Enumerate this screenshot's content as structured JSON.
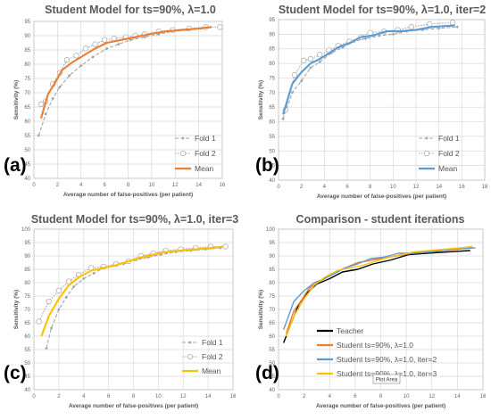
{
  "figure": {
    "tooltip": "Plot Area"
  },
  "chart_data": [
    {
      "type": "line",
      "panel_label": "(a)",
      "title": "Student Model for ts=90%, λ=1.0",
      "xlabel": "Average number of false-positives (per patient)",
      "ylabel": "Sensitivity (%)",
      "xlim": [
        0,
        16
      ],
      "ylim": [
        40,
        95
      ],
      "xticks": [
        "0",
        "2",
        "4",
        "6",
        "8",
        "10",
        "12",
        "14",
        "16"
      ],
      "yticks": [
        "40",
        "45",
        "50",
        "55",
        "60",
        "65",
        "70",
        "75",
        "80",
        "85",
        "90",
        "95"
      ],
      "grid": true,
      "legend_position": "bottom-right",
      "series": [
        {
          "name": "Fold 1",
          "color": "#a6a6a6",
          "dash": "4 2",
          "marker": "diamond",
          "x": [
            0.4,
            1.0,
            1.6,
            2.2,
            3.0,
            4.0,
            5.0,
            6.2,
            7.2,
            8.2,
            9.4,
            10.6,
            11.8,
            13.0,
            14.2,
            15.0
          ],
          "y": [
            55,
            62.5,
            68,
            72,
            76,
            79.5,
            82.5,
            85.5,
            87,
            88.5,
            89.5,
            90.5,
            91.5,
            92,
            92.5,
            93
          ]
        },
        {
          "name": "Fold 2",
          "color": "#a6a6a6",
          "dash": "1.5 1.5",
          "marker": "circle",
          "x": [
            0.6,
            1.0,
            1.6,
            2.2,
            2.8,
            3.6,
            4.4,
            5.2,
            6.0,
            6.8,
            7.8,
            8.6,
            9.4,
            10.6,
            11.8,
            13.2,
            14.6,
            15.8
          ],
          "y": [
            66,
            67,
            73,
            77,
            81.5,
            83,
            85.5,
            87,
            88.5,
            89,
            89.5,
            90,
            90.5,
            91.5,
            92,
            92.5,
            93,
            93
          ]
        },
        {
          "name": "Mean",
          "color": "#ed7d31",
          "dash": "",
          "marker": "none",
          "x": [
            0.6,
            1.2,
            1.8,
            2.4,
            3.2,
            4.2,
            5.2,
            6.2,
            7.4,
            8.6,
            9.8,
            11.2,
            12.6,
            14.0,
            15.0
          ],
          "y": [
            61,
            69.5,
            73.5,
            78,
            80.5,
            83,
            85.5,
            87.5,
            88.5,
            89.5,
            90.5,
            91.5,
            92,
            92.5,
            93
          ]
        }
      ]
    },
    {
      "type": "line",
      "panel_label": "(b)",
      "title": "Student Model for ts=90%, λ=1.0, iter=2",
      "xlabel": "Average number of false-positives (per patient)",
      "ylabel": "Sensitivity (%)",
      "xlim": [
        0,
        18
      ],
      "ylim": [
        40,
        95
      ],
      "xticks": [
        "0",
        "2",
        "4",
        "6",
        "8",
        "10",
        "12",
        "14",
        "16",
        "18"
      ],
      "yticks": [
        "40",
        "45",
        "50",
        "55",
        "60",
        "65",
        "70",
        "75",
        "80",
        "85",
        "90",
        "95"
      ],
      "grid": true,
      "legend_position": "bottom-right",
      "series": [
        {
          "name": "Fold 1",
          "color": "#a6a6a6",
          "dash": "4 2",
          "marker": "diamond",
          "x": [
            0.4,
            1.2,
            2.0,
            2.8,
            3.6,
            4.6,
            5.6,
            6.6,
            7.6,
            8.8,
            10.0,
            11.2,
            12.6,
            14.0,
            15.6
          ],
          "y": [
            61,
            70,
            74,
            78.5,
            80.5,
            83.5,
            85.5,
            87.5,
            88.5,
            89.5,
            90,
            91,
            91.5,
            92,
            92.5
          ]
        },
        {
          "name": "Fold 2",
          "color": "#a6a6a6",
          "dash": "1.5 1.5",
          "marker": "circle",
          "x": [
            0.6,
            1.4,
            2.2,
            2.8,
            3.6,
            4.4,
            5.2,
            6.2,
            7.2,
            8.0,
            9.2,
            10.4,
            11.6,
            13.2,
            15.2
          ],
          "y": [
            64,
            76,
            81,
            81.5,
            83,
            84.5,
            86,
            87.5,
            89,
            90.5,
            91,
            91.5,
            92.5,
            93.5,
            94
          ]
        },
        {
          "name": "Mean",
          "color": "#5b9bd5",
          "dash": "",
          "marker": "none",
          "x": [
            0.4,
            1.2,
            2.0,
            2.8,
            3.6,
            4.4,
            5.2,
            6.2,
            7.2,
            8.2,
            9.4,
            10.6,
            12.0,
            13.4,
            15.4
          ],
          "y": [
            62.5,
            73,
            77,
            80,
            81.5,
            83.5,
            85.5,
            87,
            89,
            89.5,
            91,
            91,
            91.5,
            92.5,
            93
          ]
        }
      ]
    },
    {
      "type": "line",
      "panel_label": "(c)",
      "title": "Student Model for ts=90%, λ=1.0, iter=3",
      "xlabel": "Average number of false-positives (per patient)",
      "ylabel": "Sensitivity (%)",
      "xlim": [
        0,
        16
      ],
      "ylim": [
        40,
        100
      ],
      "xticks": [
        "0",
        "2",
        "4",
        "6",
        "8",
        "10",
        "12",
        "14",
        "16"
      ],
      "yticks": [
        "40",
        "45",
        "50",
        "55",
        "60",
        "65",
        "70",
        "75",
        "80",
        "85",
        "90",
        "95",
        "100"
      ],
      "grid": true,
      "legend_position": "bottom-right",
      "series": [
        {
          "name": "Fold 1",
          "color": "#a6a6a6",
          "dash": "4 2",
          "marker": "diamond",
          "x": [
            1.0,
            1.4,
            2.0,
            2.6,
            3.2,
            4.0,
            4.8,
            5.6,
            6.4,
            7.2,
            8.2,
            9.2,
            10.2,
            11.4,
            12.6,
            13.8,
            15.0
          ],
          "y": [
            55.5,
            63,
            70,
            74.5,
            78.5,
            81.5,
            83.5,
            85.5,
            86.5,
            87,
            88.5,
            89.5,
            90.5,
            91.5,
            92,
            92.5,
            93
          ]
        },
        {
          "name": "Fold 2",
          "color": "#a6a6a6",
          "dash": "1.5 1.5",
          "marker": "circle",
          "x": [
            0.4,
            1.2,
            2.0,
            2.8,
            3.6,
            4.6,
            5.6,
            6.6,
            7.6,
            8.6,
            9.6,
            10.6,
            11.8,
            13.0,
            14.2,
            15.4
          ],
          "y": [
            65.5,
            73,
            77,
            80.5,
            83,
            85.5,
            86,
            87,
            88,
            90,
            91,
            92,
            92.5,
            93,
            93.5,
            93.5
          ]
        },
        {
          "name": "Mean",
          "color": "#ffc000",
          "dash": "",
          "marker": "none",
          "x": [
            0.6,
            1.2,
            2.0,
            2.8,
            3.6,
            4.6,
            5.6,
            6.6,
            7.6,
            8.6,
            9.6,
            10.6,
            11.8,
            13.0,
            14.2,
            15.2
          ],
          "y": [
            60,
            67.5,
            74,
            79,
            82,
            84.5,
            85.5,
            86.5,
            88,
            89.5,
            90.5,
            91.5,
            92,
            92.5,
            93,
            93.5
          ]
        }
      ]
    },
    {
      "type": "line",
      "panel_label": "(d)",
      "title": "Comparison - student iterations",
      "xlabel": "Average number of false-positives (per patient)",
      "ylabel": "Sensitivity (%)",
      "xlim": [
        0,
        16
      ],
      "ylim": [
        40,
        100
      ],
      "xticks": [
        "0",
        "2",
        "4",
        "6",
        "8",
        "10",
        "12",
        "14",
        "16"
      ],
      "yticks": [
        "40",
        "45",
        "50",
        "55",
        "60",
        "65",
        "70",
        "75",
        "80",
        "85",
        "90",
        "95",
        "100"
      ],
      "grid": true,
      "legend_position": "bottom-right",
      "series": [
        {
          "name": "Teacher",
          "color": "#000000",
          "dash": "",
          "marker": "none",
          "x": [
            0.4,
            1.0,
            1.6,
            2.2,
            3.0,
            4.0,
            5.0,
            6.2,
            7.4,
            8.8,
            10.2,
            11.6,
            13.2,
            15.0
          ],
          "y": [
            57.5,
            65,
            72,
            76,
            79.5,
            81.5,
            84,
            85,
            87,
            88.5,
            90.5,
            91,
            91.5,
            92
          ]
        },
        {
          "name": "Student ts=90%, λ=1.0",
          "color": "#ed7d31",
          "dash": "",
          "marker": "none",
          "x": [
            0.6,
            1.2,
            1.8,
            2.4,
            3.2,
            4.2,
            5.2,
            6.2,
            7.4,
            8.6,
            9.8,
            11.2,
            12.6,
            14.0,
            15.0
          ],
          "y": [
            61,
            69.5,
            73.5,
            78,
            80.5,
            83,
            85.5,
            87.5,
            88.5,
            89.5,
            90.5,
            91.5,
            92,
            92.5,
            93
          ]
        },
        {
          "name": "Student ts=90%, λ=1.0, iter=2",
          "color": "#5b9bd5",
          "dash": "",
          "marker": "none",
          "x": [
            0.4,
            1.2,
            2.0,
            2.8,
            3.6,
            4.4,
            5.2,
            6.2,
            7.2,
            8.2,
            9.4,
            10.6,
            12.0,
            13.4,
            15.4
          ],
          "y": [
            62.5,
            73,
            77,
            80,
            81.5,
            83.5,
            85.5,
            87,
            89,
            89.5,
            91,
            91,
            91.5,
            92.5,
            93
          ]
        },
        {
          "name": "Student ts=90%, λ=1.0, iter=3",
          "color": "#ffc000",
          "dash": "",
          "marker": "none",
          "x": [
            0.6,
            1.2,
            2.0,
            2.8,
            3.6,
            4.6,
            5.6,
            6.6,
            7.6,
            8.6,
            9.6,
            10.6,
            11.8,
            13.0,
            14.2,
            15.2
          ],
          "y": [
            60,
            67.5,
            74,
            79,
            82,
            84.5,
            85.5,
            86.5,
            88,
            89.5,
            90.5,
            91.5,
            92,
            92.5,
            93,
            93.5
          ]
        }
      ]
    }
  ]
}
